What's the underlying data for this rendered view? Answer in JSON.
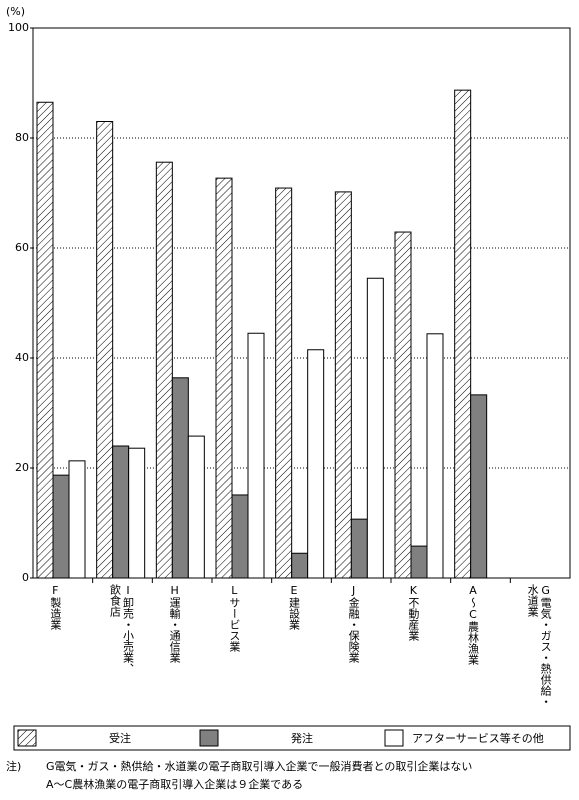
{
  "chart_data": {
    "type": "bar",
    "y_label": "(%)",
    "categories": [
      "F製造業",
      "I卸売・小売業、\n飲食店",
      "H運輸・通信業",
      "Lサービス業",
      "E建設業",
      "J金融・保険業",
      "K不動産業",
      "A～C農林漁業",
      "G電気・ガス・熱供給・\n水道業"
    ],
    "series": [
      {
        "name": "受注",
        "color": "#ffffff",
        "pattern": "hatch",
        "values": [
          86.5,
          83,
          75.6,
          72.7,
          70.9,
          70.2,
          62.9,
          88.7,
          null
        ]
      },
      {
        "name": "発注",
        "color": "#808080",
        "values": [
          18.7,
          24,
          36.4,
          15.1,
          4.5,
          10.7,
          5.8,
          33.3,
          null
        ]
      },
      {
        "name": "アフターサービス等その他",
        "color": "#ffffff",
        "values": [
          21.3,
          23.6,
          25.8,
          44.5,
          41.5,
          54.5,
          44.4,
          null,
          null
        ]
      }
    ],
    "ylim": [
      0,
      100
    ],
    "yticks": [
      0,
      20,
      40,
      60,
      80,
      100
    ],
    "grid": true,
    "notes": {
      "label": "注)",
      "lines": [
        "G電気・ガス・熱供給・水道業の電子商取引導入企業で一般消費者との取引企業はない",
        "A～C農林漁業の電子商取引導入企業は９企業である"
      ]
    }
  }
}
